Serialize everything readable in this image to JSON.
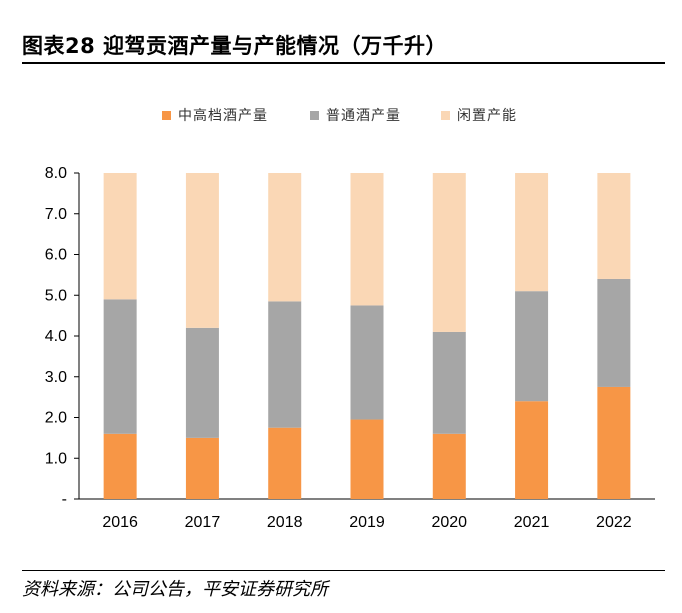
{
  "header": {
    "title": "图表28    迎驾贡酒产量与产能情况（万千升）"
  },
  "footer": {
    "source": "资料来源：公司公告，平安证券研究所"
  },
  "chart_data": {
    "type": "bar",
    "stacked": true,
    "categories": [
      "2016",
      "2017",
      "2018",
      "2019",
      "2020",
      "2021",
      "2022"
    ],
    "series": [
      {
        "name": "中高档酒产量",
        "color": "#F79646",
        "values": [
          1.6,
          1.5,
          1.75,
          1.95,
          1.6,
          2.4,
          2.75
        ]
      },
      {
        "name": "普通酒产量",
        "color": "#A6A6A6",
        "values": [
          3.3,
          2.7,
          3.1,
          2.8,
          2.5,
          2.7,
          2.65
        ]
      },
      {
        "name": "闲置产能",
        "color": "#FAD7B5",
        "values": [
          3.1,
          3.8,
          3.15,
          3.25,
          3.9,
          2.9,
          2.6
        ]
      }
    ],
    "ylim": [
      0,
      8
    ],
    "yticks": [
      "-",
      "1.0",
      "2.0",
      "3.0",
      "4.0",
      "5.0",
      "6.0",
      "7.0",
      "8.0"
    ],
    "legend_position": "top"
  }
}
